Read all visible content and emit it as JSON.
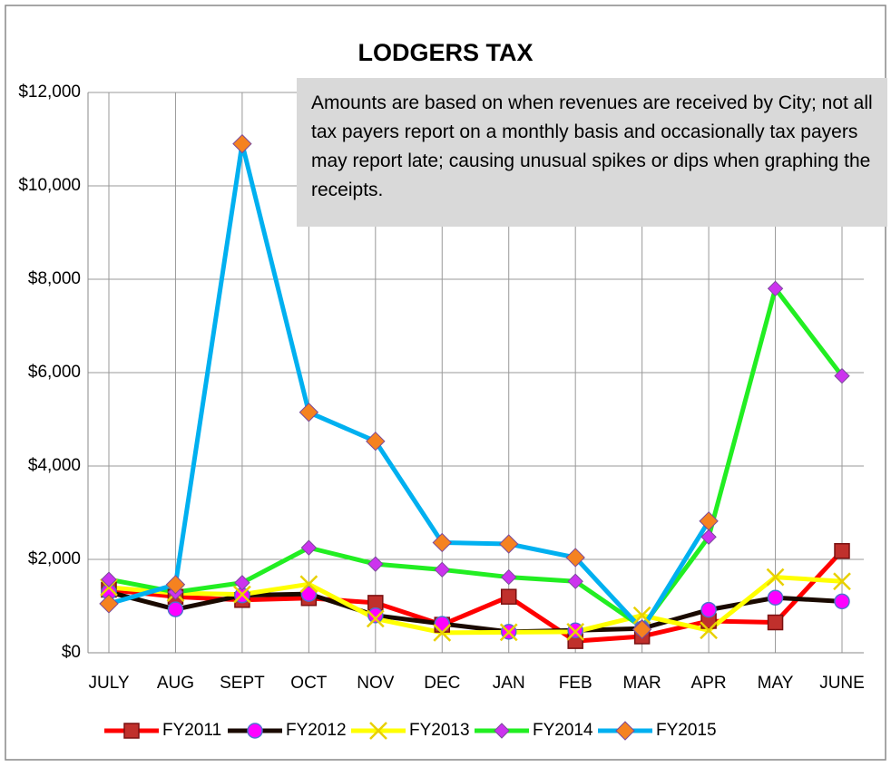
{
  "chart_data": {
    "type": "line",
    "title": "LODGERS TAX",
    "annotation": "Amounts are based on when revenues are received by City; not all tax payers report on a monthly basis and occasionally tax payers may report late; causing unusual spikes or dips when graphing the receipts.",
    "categories": [
      "JULY",
      "AUG",
      "SEPT",
      "OCT",
      "NOV",
      "DEC",
      "JAN",
      "FEB",
      "MAR",
      "APR",
      "MAY",
      "JUNE"
    ],
    "ylim": [
      0,
      12000
    ],
    "yticks": [
      {
        "value": 0,
        "label": "$0"
      },
      {
        "value": 2000,
        "label": "$2,000"
      },
      {
        "value": 4000,
        "label": "$4,000"
      },
      {
        "value": 6000,
        "label": "$6,000"
      },
      {
        "value": 8000,
        "label": "$8,000"
      },
      {
        "value": 10000,
        "label": "$10,000"
      },
      {
        "value": 12000,
        "label": "$12,000"
      }
    ],
    "grid": true,
    "legend": "bottom",
    "series": [
      {
        "name": "FY2011",
        "color": "#ff0000",
        "marker": "square",
        "values": [
          1350,
          1200,
          1130,
          1170,
          1070,
          600,
          1200,
          250,
          350,
          680,
          650,
          2180
        ]
      },
      {
        "name": "FY2012",
        "color": "#1a0a00",
        "marker": "circle",
        "values": [
          1300,
          930,
          1230,
          1260,
          800,
          620,
          450,
          480,
          520,
          920,
          1180,
          1100
        ]
      },
      {
        "name": "FY2013",
        "color": "#ffff00",
        "marker": "x",
        "values": [
          1400,
          1280,
          1250,
          1470,
          730,
          430,
          440,
          450,
          800,
          480,
          1620,
          1530
        ]
      },
      {
        "name": "FY2014",
        "color": "#22ee22",
        "marker": "diamond-small",
        "values": [
          1570,
          1300,
          1500,
          2250,
          1900,
          1780,
          1620,
          1530,
          550,
          2480,
          7800,
          5930
        ]
      },
      {
        "name": "FY2015",
        "color": "#00b0f0",
        "marker": "diamond",
        "values": [
          1050,
          1460,
          10900,
          5150,
          4530,
          2360,
          2330,
          2040,
          500,
          2820,
          null,
          null
        ]
      }
    ]
  }
}
